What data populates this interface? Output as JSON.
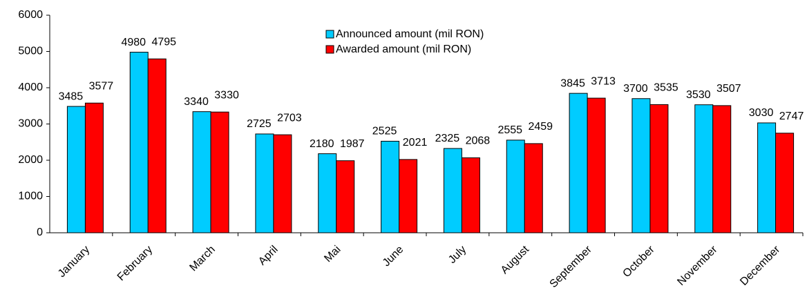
{
  "chart_data": {
    "type": "bar",
    "categories": [
      "January",
      "February",
      "March",
      "April",
      "Mai",
      "June",
      "July",
      "August",
      "September",
      "October",
      "November",
      "December"
    ],
    "series": [
      {
        "name": "Announced amount (mil RON)",
        "color": "#00ccff",
        "values": [
          3485,
          4980,
          3340,
          2725,
          2180,
          2525,
          2325,
          2555,
          3845,
          3700,
          3530,
          3030
        ]
      },
      {
        "name": "Awarded amount (mil RON)",
        "color": "#ff0000",
        "values": [
          3577,
          4795,
          3330,
          2703,
          1987,
          2021,
          2068,
          2459,
          3713,
          3535,
          3507,
          2747
        ]
      }
    ],
    "ylim": [
      0,
      6000
    ],
    "yticks": [
      0,
      1000,
      2000,
      3000,
      4000,
      5000,
      6000
    ],
    "grid": false
  }
}
